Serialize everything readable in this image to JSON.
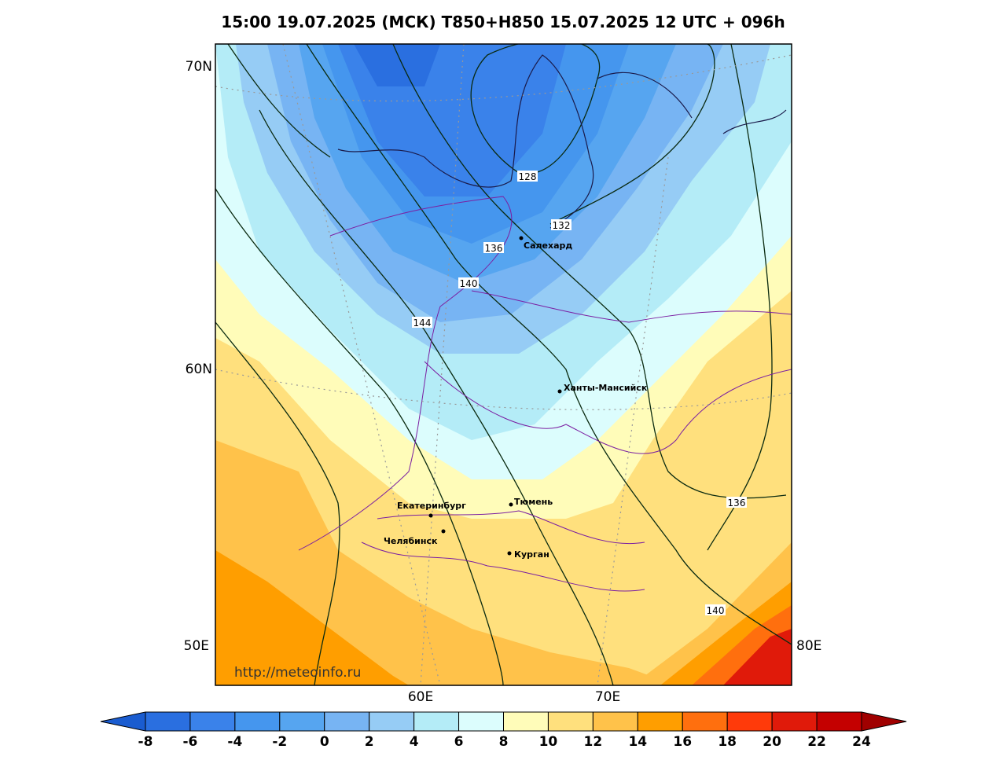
{
  "title": "15:00 19.07.2025 (МСК) T850+H850 15.07.2025 12 UTC + 096h",
  "lat_labels": [
    "70N",
    "60N"
  ],
  "lon_labels": [
    "50E",
    "60E",
    "70E",
    "80E"
  ],
  "contour_labels": [
    "128",
    "132",
    "136",
    "140",
    "144",
    "136",
    "140"
  ],
  "cities": [
    "Салехард",
    "Ханты-Мансийск",
    "Екатеринбург",
    "Тюмень",
    "Челябинск",
    "Курган"
  ],
  "url": "http://meteoinfo.ru",
  "colorbar": {
    "labels": [
      "-8",
      "-6",
      "-4",
      "-2",
      "0",
      "2",
      "4",
      "6",
      "8",
      "10",
      "12",
      "14",
      "16",
      "18",
      "20",
      "22",
      "24"
    ],
    "colors": [
      "#1a5cd0",
      "#2a6fe0",
      "#3a82ea",
      "#4596ee",
      "#56a5f0",
      "#77b4f3",
      "#96ccf5",
      "#b4ecf7",
      "#dcfdfd",
      "#fffcb9",
      "#ffe07d",
      "#ffc24a",
      "#ff9e00",
      "#ff6f0e",
      "#ff3a0a",
      "#e01a0a",
      "#c40000",
      "#a00000"
    ]
  }
}
